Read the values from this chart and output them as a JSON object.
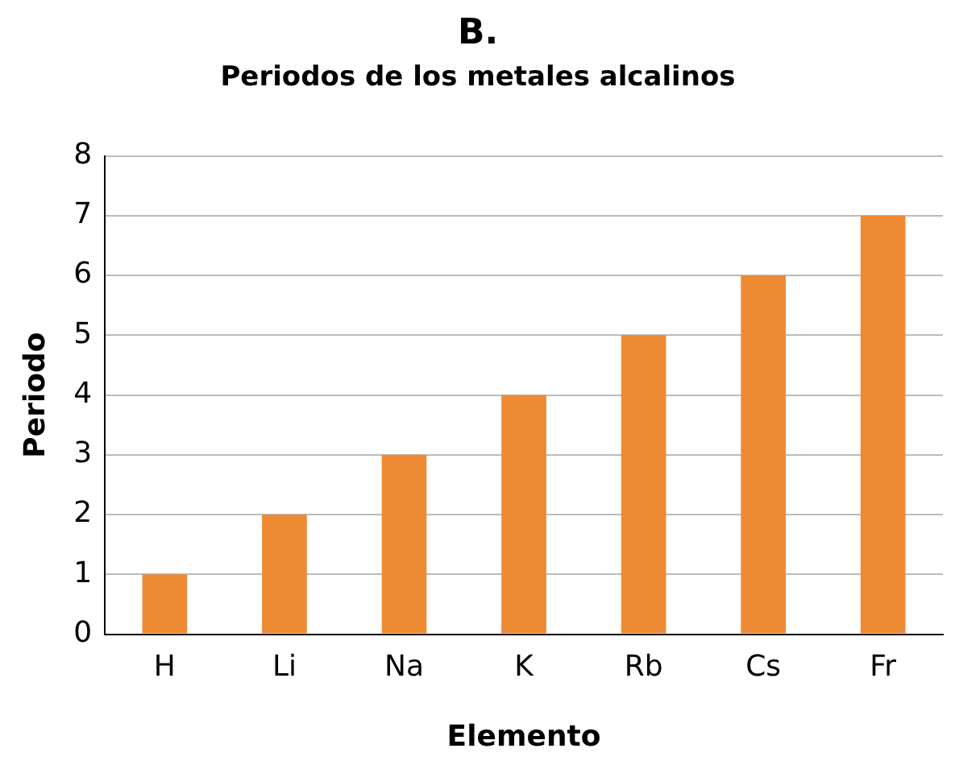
{
  "chart_data": {
    "type": "bar",
    "title": "B.",
    "subtitle": "Periodos de los metales alcalinos",
    "xlabel": "Elemento",
    "ylabel": "Periodo",
    "categories": [
      "H",
      "Li",
      "Na",
      "K",
      "Rb",
      "Cs",
      "Fr"
    ],
    "values": [
      1,
      2,
      3,
      4,
      5,
      6,
      7
    ],
    "color": "#ee8a34",
    "ylim": [
      0,
      8
    ],
    "yticks": [
      0,
      1,
      2,
      3,
      4,
      5,
      6,
      7,
      8
    ],
    "grid": "y",
    "legend": false
  }
}
